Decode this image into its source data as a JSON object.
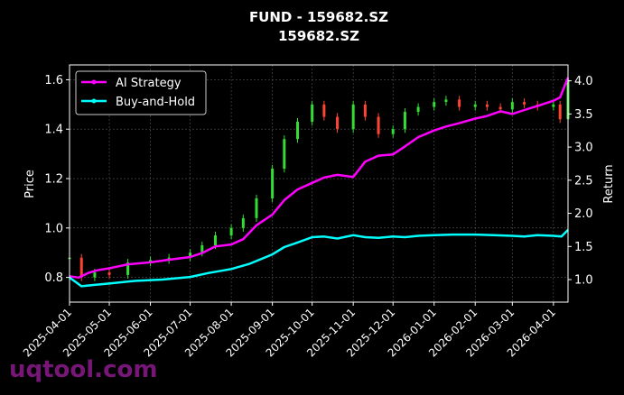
{
  "chart_data": {
    "type": "line",
    "title": "FUND - 159682.SZ",
    "subtitle": "159682.SZ",
    "ylabel_left": "Price",
    "ylabel_right": "Return",
    "ylim_left": [
      0.7,
      1.66
    ],
    "ylim_right": [
      0.66,
      4.24
    ],
    "yticks_left": [
      "0.8",
      "1.0",
      "1.2",
      "1.4",
      "1.6"
    ],
    "yticks_right": [
      "1.0",
      "1.5",
      "2.0",
      "2.5",
      "3.0",
      "3.5",
      "4.0"
    ],
    "xticks": [
      "2025-04-01",
      "2025-05-01",
      "2025-06-01",
      "2025-07-01",
      "2025-08-01",
      "2025-09-01",
      "2025-10-01",
      "2025-11-01",
      "2025-12-01",
      "2026-01-01",
      "2026-02-01",
      "2026-03-01",
      "2026-04-01"
    ],
    "x_range": [
      "2025-04-01",
      "2026-04-12"
    ],
    "grid": true,
    "legend_position": "top-left",
    "legend": [
      "AI Strategy",
      "Buy-and-Hold"
    ],
    "colors": {
      "background": "#000000",
      "ai": "#ff00ff",
      "bh": "#00ffff",
      "up": "#33dd33",
      "down": "#ff4433",
      "text": "#ffffff",
      "grid": "#555555"
    },
    "series": [
      {
        "name": "AI Strategy",
        "axis": "right",
        "x": [
          "2025-04-01",
          "2025-04-08",
          "2025-04-15",
          "2025-04-22",
          "2025-05-01",
          "2025-05-15",
          "2025-06-01",
          "2025-06-15",
          "2025-07-01",
          "2025-07-10",
          "2025-07-20",
          "2025-08-01",
          "2025-08-10",
          "2025-08-20",
          "2025-09-01",
          "2025-09-10",
          "2025-09-20",
          "2025-10-01",
          "2025-10-10",
          "2025-10-20",
          "2025-11-01",
          "2025-11-10",
          "2025-11-20",
          "2025-12-01",
          "2025-12-10",
          "2025-12-20",
          "2026-01-01",
          "2026-01-10",
          "2026-01-20",
          "2026-02-01",
          "2026-02-10",
          "2026-02-20",
          "2026-03-01",
          "2026-03-10",
          "2026-03-20",
          "2026-04-01",
          "2026-04-06",
          "2026-04-09",
          "2026-04-12"
        ],
        "values": [
          1.05,
          1.03,
          1.1,
          1.14,
          1.17,
          1.23,
          1.26,
          1.3,
          1.34,
          1.4,
          1.5,
          1.53,
          1.61,
          1.82,
          1.98,
          2.2,
          2.36,
          2.46,
          2.54,
          2.58,
          2.55,
          2.78,
          2.87,
          2.89,
          3.01,
          3.15,
          3.25,
          3.31,
          3.36,
          3.43,
          3.47,
          3.54,
          3.5,
          3.56,
          3.62,
          3.7,
          3.75,
          3.9,
          4.05
        ]
      },
      {
        "name": "Buy-and-Hold",
        "axis": "right",
        "x": [
          "2025-04-01",
          "2025-04-06",
          "2025-04-10",
          "2025-04-20",
          "2025-05-01",
          "2025-05-20",
          "2025-06-10",
          "2025-07-01",
          "2025-07-15",
          "2025-08-01",
          "2025-08-15",
          "2025-09-01",
          "2025-09-10",
          "2025-09-20",
          "2025-10-01",
          "2025-10-10",
          "2025-10-20",
          "2025-11-01",
          "2025-11-10",
          "2025-11-20",
          "2025-12-01",
          "2025-12-10",
          "2025-12-20",
          "2026-01-01",
          "2026-01-15",
          "2026-02-01",
          "2026-02-15",
          "2026-03-01",
          "2026-03-10",
          "2026-03-20",
          "2026-04-01",
          "2026-04-07",
          "2026-04-12"
        ],
        "values": [
          1.03,
          0.96,
          0.9,
          0.92,
          0.94,
          0.98,
          1.0,
          1.04,
          1.1,
          1.16,
          1.24,
          1.38,
          1.49,
          1.56,
          1.64,
          1.65,
          1.62,
          1.67,
          1.64,
          1.63,
          1.65,
          1.64,
          1.66,
          1.67,
          1.68,
          1.68,
          1.67,
          1.66,
          1.65,
          1.67,
          1.66,
          1.65,
          1.75
        ]
      }
    ],
    "price_candles": {
      "axis": "left",
      "x": [
        "2025-04-01",
        "2025-04-10",
        "2025-04-20",
        "2025-05-01",
        "2025-05-15",
        "2025-06-01",
        "2025-06-15",
        "2025-07-01",
        "2025-07-10",
        "2025-07-20",
        "2025-08-01",
        "2025-08-10",
        "2025-08-20",
        "2025-09-01",
        "2025-09-10",
        "2025-09-20",
        "2025-10-01",
        "2025-10-10",
        "2025-10-20",
        "2025-11-01",
        "2025-11-10",
        "2025-11-20",
        "2025-12-01",
        "2025-12-10",
        "2025-12-20",
        "2026-01-01",
        "2026-01-10",
        "2026-01-20",
        "2026-02-01",
        "2026-02-10",
        "2026-02-20",
        "2026-03-01",
        "2026-03-10",
        "2026-03-20",
        "2026-04-01",
        "2026-04-06",
        "2026-04-12"
      ],
      "close": [
        0.88,
        0.8,
        0.82,
        0.81,
        0.86,
        0.87,
        0.88,
        0.9,
        0.93,
        0.97,
        1.0,
        1.04,
        1.12,
        1.24,
        1.36,
        1.43,
        1.5,
        1.45,
        1.4,
        1.5,
        1.45,
        1.38,
        1.4,
        1.47,
        1.49,
        1.51,
        1.52,
        1.49,
        1.5,
        1.49,
        1.48,
        1.51,
        1.5,
        1.49,
        1.5,
        1.44,
        1.6
      ]
    }
  }
}
